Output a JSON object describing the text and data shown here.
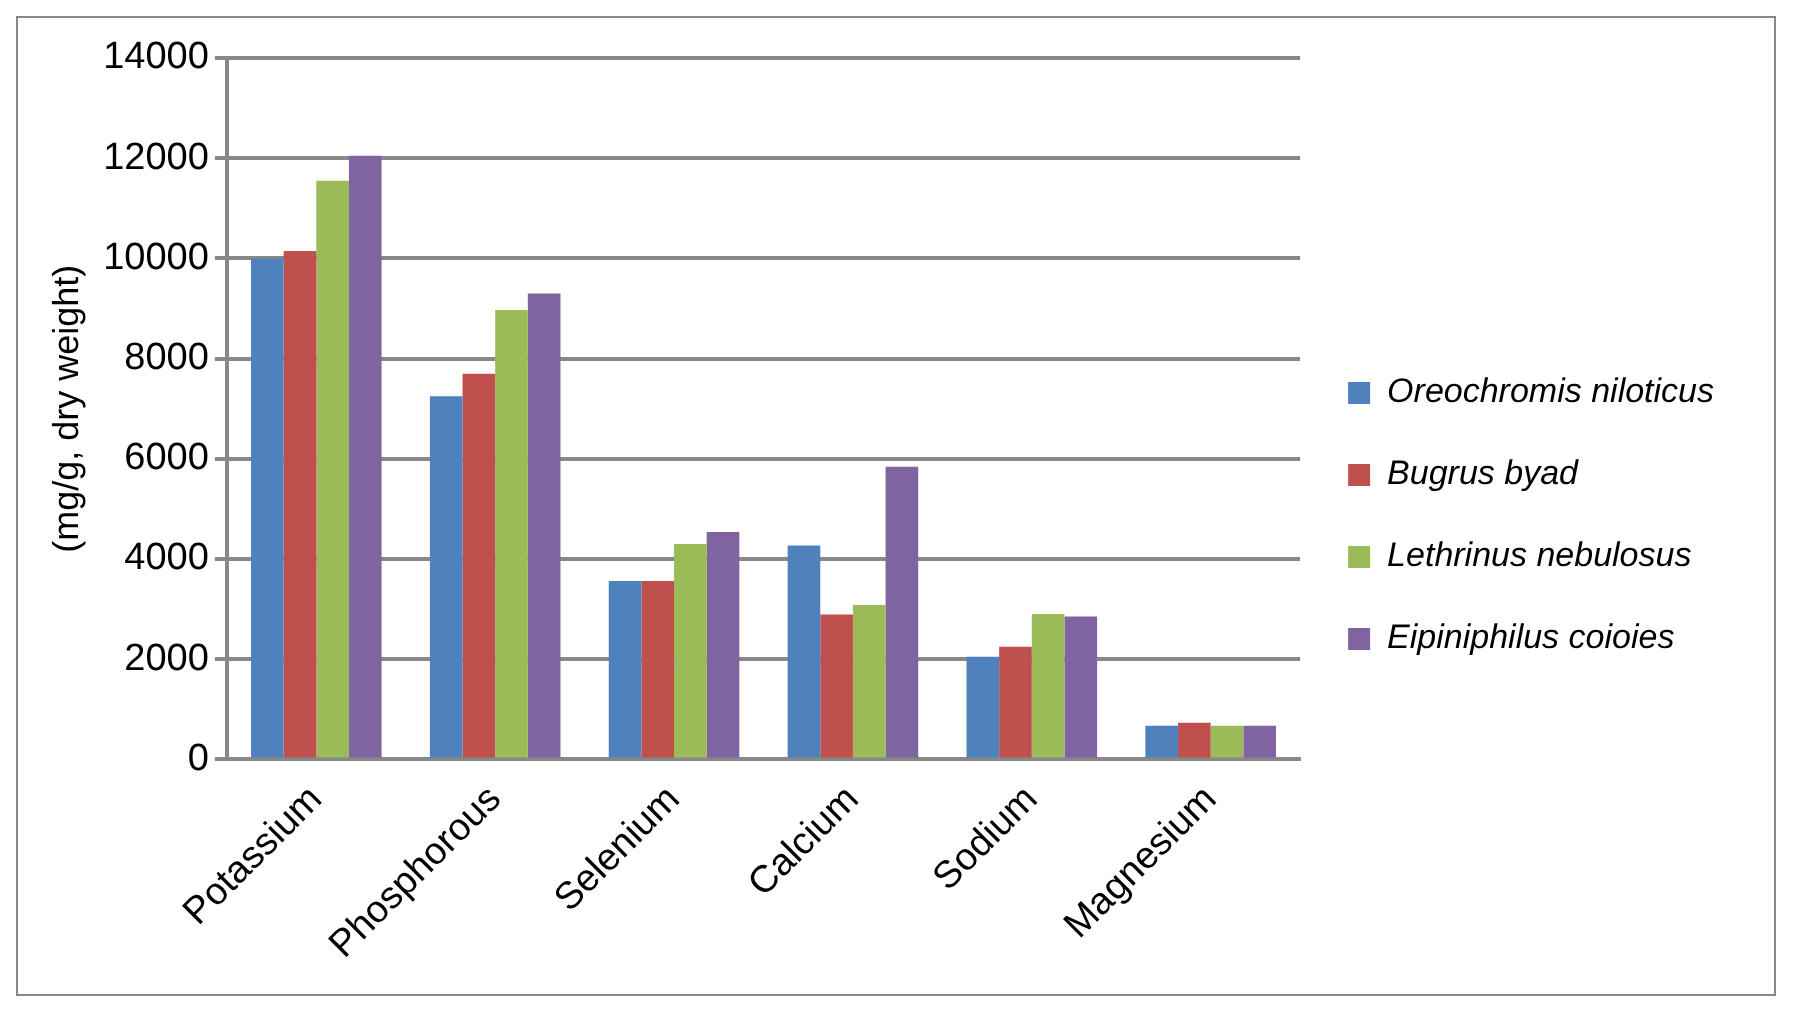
{
  "chart_data": {
    "type": "bar",
    "ylabel": "(mg/g, dry weight)",
    "categories": [
      "Potassium",
      "Phosphorous",
      "Selenium",
      "Calcium",
      "Sodium",
      "Magnesium"
    ],
    "series": [
      {
        "name": "Oreochromis niloticus",
        "color": "#4f81bd",
        "values": [
          10000,
          7250,
          3560,
          4270,
          2050,
          670
        ]
      },
      {
        "name": "Bugrus byad",
        "color": "#c0504d",
        "values": [
          10150,
          7700,
          3560,
          2890,
          2250,
          730
        ]
      },
      {
        "name": "Lethrinus nebulosus",
        "color": "#9bbb59",
        "values": [
          11550,
          8970,
          4300,
          3080,
          2900,
          670
        ]
      },
      {
        "name": "Eipiniphilus coioies",
        "color": "#8064a2",
        "values": [
          12050,
          9300,
          4540,
          5840,
          2850,
          670
        ]
      }
    ],
    "ylim": [
      0,
      14000
    ],
    "yticks": [
      0,
      2000,
      4000,
      6000,
      8000,
      10000,
      12000,
      14000
    ],
    "grid": "y",
    "legend": "right"
  }
}
